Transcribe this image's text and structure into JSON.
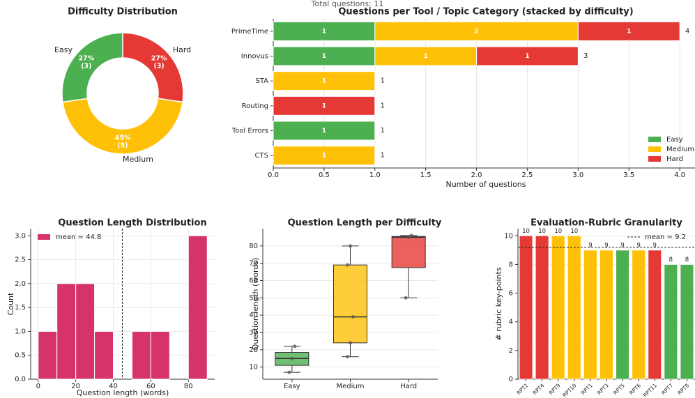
{
  "suptitle": "Total questions: 11",
  "colors": {
    "easy": "#4caf50",
    "medium": "#ffc107",
    "hard": "#e53935",
    "hist": "#d6336c"
  },
  "chart_data": [
    {
      "type": "pie",
      "title": "Difficulty Distribution",
      "donut": true,
      "slices": [
        {
          "label": "Hard",
          "value": 3,
          "pct_label": "27%\n(3)"
        },
        {
          "label": "Medium",
          "value": 5,
          "pct_label": "45%\n(5)"
        },
        {
          "label": "Easy",
          "value": 3,
          "pct_label": "27%\n(3)"
        }
      ]
    },
    {
      "type": "bar",
      "orientation": "horizontal",
      "stacked": true,
      "title": "Questions per Tool / Topic Category (stacked by difficulty)",
      "xlabel": "Number of questions",
      "ylabel": "",
      "categories": [
        "PrimeTime",
        "Innovus",
        "STA",
        "Routing",
        "Tool Errors",
        "CTS"
      ],
      "series": [
        {
          "name": "Easy",
          "values": [
            1,
            1,
            0,
            0,
            1,
            0
          ]
        },
        {
          "name": "Medium",
          "values": [
            2,
            1,
            1,
            0,
            0,
            1
          ]
        },
        {
          "name": "Hard",
          "values": [
            1,
            1,
            0,
            1,
            0,
            0
          ]
        }
      ],
      "totals": [
        4,
        3,
        1,
        1,
        1,
        1
      ],
      "xlim": [
        0,
        4.15
      ],
      "xticks": [
        "0.0",
        "0.5",
        "1.0",
        "1.5",
        "2.0",
        "2.5",
        "3.0",
        "3.5",
        "4.0"
      ],
      "legend": "bottom-right",
      "grid": "x"
    },
    {
      "type": "bar",
      "subtype": "histogram",
      "title": "Question Length Distribution",
      "xlabel": "Question length (words)",
      "ylabel": "Count",
      "bins": [
        {
          "from": 0,
          "to": 10,
          "count": 1
        },
        {
          "from": 10,
          "to": 20,
          "count": 2
        },
        {
          "from": 20,
          "to": 30,
          "count": 2
        },
        {
          "from": 30,
          "to": 40,
          "count": 1
        },
        {
          "from": 50,
          "to": 60,
          "count": 1
        },
        {
          "from": 60,
          "to": 70,
          "count": 1
        },
        {
          "from": 80,
          "to": 90,
          "count": 3
        }
      ],
      "mean": 44.8,
      "legend": "mean = 44.8",
      "xlim": [
        -4,
        94
      ],
      "ylim": [
        0,
        3.15
      ],
      "xticks": [
        "0",
        "20",
        "40",
        "60",
        "80"
      ],
      "yticks": [
        "0.0",
        "0.5",
        "1.0",
        "1.5",
        "2.0",
        "2.5",
        "3.0"
      ]
    },
    {
      "type": "box",
      "title": "Question Length per Difficulty",
      "ylabel": "Question length (words)",
      "xlabel": "",
      "categories": [
        "Easy",
        "Medium",
        "Hard"
      ],
      "boxes": [
        {
          "q1": 11,
          "median": 15,
          "q3": 18.5,
          "min": 7,
          "max": 22,
          "points": [
            7,
            15,
            22
          ]
        },
        {
          "q1": 24,
          "median": 39,
          "q3": 69,
          "min": 16,
          "max": 80,
          "points": [
            16,
            24,
            39,
            69,
            80
          ]
        },
        {
          "q1": 67.5,
          "median": 85,
          "q3": 85.5,
          "min": 50,
          "max": 86,
          "points": [
            50,
            85,
            86
          ]
        }
      ],
      "ylim": [
        3,
        90
      ],
      "yticks": [
        "10",
        "20",
        "30",
        "40",
        "50",
        "60",
        "70",
        "80"
      ],
      "grid": "y"
    },
    {
      "type": "bar",
      "title": "Evaluation-Rubric Granularity",
      "ylabel": "# rubric key-points",
      "xlabel": "",
      "categories": [
        "RPT2",
        "RPT4",
        "RPT9",
        "RPT10",
        "RPT1",
        "RPT3",
        "RPT5",
        "RPT6",
        "RPT11",
        "RPT7",
        "RPT8"
      ],
      "values": [
        10,
        10,
        10,
        10,
        9,
        9,
        9,
        9,
        9,
        8,
        8
      ],
      "difficulty": [
        "Hard",
        "Hard",
        "Medium",
        "Medium",
        "Medium",
        "Medium",
        "Easy",
        "Medium",
        "Hard",
        "Easy",
        "Easy"
      ],
      "mean": 9.2,
      "legend": "mean = 9.2",
      "ylim": [
        0,
        10.5
      ],
      "yticks": [
        "0",
        "2",
        "4",
        "6",
        "8",
        "10"
      ],
      "grid": "y"
    }
  ]
}
